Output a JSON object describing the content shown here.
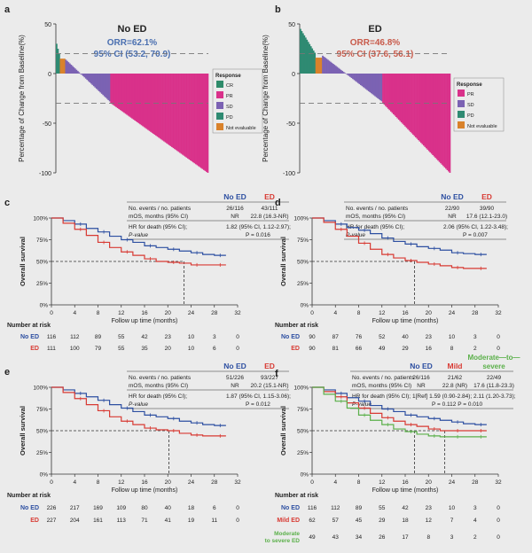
{
  "colors": {
    "no_ed": "#2d4fa1",
    "ed": "#d83a33",
    "mild": "#d83a33",
    "moderate": "#5bb04a",
    "cr": "#2e8b6a",
    "pr": "#d9318a",
    "sd": "#7b62b3",
    "pd": "#2f8a72",
    "ne": "#d9822b",
    "panel_title_a": "#4a6fb0",
    "panel_title_b": "#c85a4a"
  },
  "waterfall": [
    {
      "id": "a",
      "title": "No ED",
      "orr": "ORR=62.1%",
      "ci": "95% CI (53.2, 70.9)",
      "ylabel": "Percentage of Change from Baseline(%)",
      "yticks": [
        "50",
        "0",
        "-50",
        "-100"
      ],
      "legend_title": "Response",
      "legend": [
        {
          "label": "CR",
          "key": "cr"
        },
        {
          "label": "PR",
          "key": "pr"
        },
        {
          "label": "SD",
          "key": "sd"
        },
        {
          "label": "PD",
          "key": "pd"
        },
        {
          "label": "Not evaluable",
          "key": "ne"
        }
      ],
      "ref_lines": [
        20,
        -30
      ],
      "groups": [
        {
          "key": "pd",
          "n": 3,
          "from": 30,
          "to": 20
        },
        {
          "key": "ne",
          "n": 4,
          "from": 15,
          "to": 15
        },
        {
          "key": "sd",
          "n": 34,
          "from": 14,
          "to": -28
        },
        {
          "key": "pr",
          "n": 74,
          "from": -30,
          "to": -100
        }
      ]
    },
    {
      "id": "b",
      "title": "ED",
      "orr": "ORR=46.8%",
      "ci": "95% CI (37.6, 56.1)",
      "ylabel": "Percentage of Change from Baseline(%)",
      "yticks": [
        "50",
        "0",
        "-50",
        "-100"
      ],
      "legend_title": "Response",
      "legend": [
        {
          "label": "PR",
          "key": "pr"
        },
        {
          "label": "SD",
          "key": "sd"
        },
        {
          "label": "PD",
          "key": "pd"
        },
        {
          "label": "Not evaluable",
          "key": "ne"
        }
      ],
      "ref_lines": [
        20,
        -30
      ],
      "groups": [
        {
          "key": "pd",
          "n": 12,
          "from": 45,
          "to": 21
        },
        {
          "key": "ne",
          "n": 5,
          "from": 16,
          "to": 16
        },
        {
          "key": "sd",
          "n": 46,
          "from": 18,
          "to": -28
        },
        {
          "key": "pr",
          "n": 52,
          "from": -30,
          "to": -100
        }
      ]
    }
  ],
  "km_common": {
    "ylabel": "Overall survival",
    "xlabel": "Follow up time (months)",
    "xticks": [
      "0",
      "4",
      "8",
      "12",
      "16",
      "20",
      "24",
      "28",
      "32"
    ],
    "yticks": [
      "100%",
      "75%",
      "50%",
      "25%",
      "0%"
    ],
    "risk_title": "Number at risk",
    "stats_rows": [
      "No. events / no. patients",
      "mOS, months (95% CI)",
      "HR for death (95% CI);",
      "P-value"
    ]
  },
  "km": [
    {
      "id": "c",
      "groups": [
        "No ED",
        "ED"
      ],
      "events": [
        "26/116",
        "43/111"
      ],
      "mos": [
        "NR",
        "22.8 (16.3-NR)"
      ],
      "hr": "1.82 (95% CI, 1.12-2.97);",
      "p": "P = 0.016",
      "median_x": [
        22.8
      ],
      "risk": [
        {
          "label": "No ED",
          "values": [
            "116",
            "112",
            "89",
            "55",
            "42",
            "23",
            "10",
            "3",
            "0"
          ]
        },
        {
          "label": "ED",
          "values": [
            "111",
            "100",
            "79",
            "55",
            "35",
            "20",
            "10",
            "6",
            "0"
          ]
        }
      ],
      "series": [
        {
          "name": "No ED",
          "x": [
            0,
            2,
            4,
            6,
            8,
            10,
            12,
            14,
            16,
            18,
            20,
            22,
            24,
            26,
            28,
            30
          ],
          "y": [
            1,
            0.97,
            0.93,
            0.88,
            0.84,
            0.79,
            0.75,
            0.72,
            0.68,
            0.66,
            0.64,
            0.62,
            0.6,
            0.58,
            0.57,
            0.57
          ]
        },
        {
          "name": "ED",
          "x": [
            0,
            2,
            4,
            6,
            8,
            10,
            12,
            14,
            16,
            18,
            20,
            22,
            24,
            26,
            28,
            30
          ],
          "y": [
            1,
            0.94,
            0.87,
            0.8,
            0.72,
            0.66,
            0.61,
            0.57,
            0.53,
            0.5,
            0.49,
            0.48,
            0.46,
            0.46,
            0.46,
            0.46
          ]
        }
      ]
    },
    {
      "id": "d",
      "groups": [
        "No ED",
        "ED"
      ],
      "events": [
        "22/90",
        "39/90"
      ],
      "mos": [
        "NR",
        "17.6 (12.1-23.0)"
      ],
      "hr": "2.06 (95% CI, 1.22-3.48);",
      "p": "P = 0.007",
      "median_x": [
        17.6
      ],
      "risk": [
        {
          "label": "No ED",
          "values": [
            "90",
            "87",
            "76",
            "52",
            "40",
            "23",
            "10",
            "3",
            "0"
          ]
        },
        {
          "label": "ED",
          "values": [
            "90",
            "81",
            "66",
            "49",
            "29",
            "16",
            "8",
            "2",
            "0"
          ]
        }
      ],
      "series": [
        {
          "name": "No ED",
          "x": [
            0,
            2,
            4,
            6,
            8,
            10,
            12,
            14,
            16,
            18,
            20,
            22,
            24,
            26,
            28,
            30
          ],
          "y": [
            1,
            0.97,
            0.93,
            0.89,
            0.86,
            0.82,
            0.77,
            0.73,
            0.7,
            0.67,
            0.65,
            0.63,
            0.6,
            0.59,
            0.58,
            0.58
          ]
        },
        {
          "name": "ED",
          "x": [
            0,
            2,
            4,
            6,
            8,
            10,
            12,
            14,
            16,
            18,
            20,
            22,
            24,
            26,
            28,
            30
          ],
          "y": [
            1,
            0.95,
            0.87,
            0.79,
            0.71,
            0.64,
            0.58,
            0.54,
            0.51,
            0.49,
            0.47,
            0.45,
            0.43,
            0.42,
            0.42,
            0.42
          ]
        }
      ]
    },
    {
      "id": "e",
      "groups": [
        "No ED",
        "ED"
      ],
      "events": [
        "51/226",
        "93/227"
      ],
      "mos": [
        "NR",
        "20.2 (15.1-NR)"
      ],
      "hr": "1.87 (95% CI, 1.15-3.06);",
      "p": "P = 0.012",
      "median_x": [
        20.2
      ],
      "risk": [
        {
          "label": "No ED",
          "values": [
            "226",
            "217",
            "169",
            "109",
            "80",
            "40",
            "18",
            "6",
            "0"
          ]
        },
        {
          "label": "ED",
          "values": [
            "227",
            "204",
            "161",
            "113",
            "71",
            "41",
            "19",
            "11",
            "0"
          ]
        }
      ],
      "series": [
        {
          "name": "No ED",
          "x": [
            0,
            2,
            4,
            6,
            8,
            10,
            12,
            14,
            16,
            18,
            20,
            22,
            24,
            26,
            28,
            30
          ],
          "y": [
            1,
            0.97,
            0.93,
            0.89,
            0.85,
            0.8,
            0.76,
            0.72,
            0.68,
            0.66,
            0.64,
            0.61,
            0.59,
            0.57,
            0.56,
            0.56
          ]
        },
        {
          "name": "ED",
          "x": [
            0,
            2,
            4,
            6,
            8,
            10,
            12,
            14,
            16,
            18,
            20,
            22,
            24,
            26,
            28,
            30
          ],
          "y": [
            1,
            0.94,
            0.87,
            0.8,
            0.73,
            0.66,
            0.61,
            0.57,
            0.53,
            0.51,
            0.5,
            0.47,
            0.45,
            0.44,
            0.44,
            0.44
          ]
        }
      ]
    },
    {
      "id": "f",
      "groups": [
        "No ED",
        "Mild",
        "Moderate—to—severe"
      ],
      "events": [
        "26/116",
        "21/62",
        "22/49"
      ],
      "mos": [
        "NR",
        "22.8 (NR)",
        "17.6 (11.8-23.3)"
      ],
      "hr": "1[Ref] 1.59 (0.90-2.84); 2.11 (1.20-3.73);",
      "p": "P = 0.112    P = 0.010",
      "median_x": [
        22.8,
        17.6
      ],
      "risk": [
        {
          "label": "No ED",
          "values": [
            "116",
            "112",
            "89",
            "55",
            "42",
            "23",
            "10",
            "3",
            "0"
          ]
        },
        {
          "label": "Mild ED",
          "values": [
            "62",
            "57",
            "45",
            "29",
            "18",
            "12",
            "7",
            "4",
            "0"
          ]
        },
        {
          "label": "Moderate to severe ED",
          "values": [
            "49",
            "43",
            "34",
            "26",
            "17",
            "8",
            "3",
            "2",
            "0"
          ]
        }
      ],
      "series": [
        {
          "name": "No ED",
          "x": [
            0,
            2,
            4,
            6,
            8,
            10,
            12,
            14,
            16,
            18,
            20,
            22,
            24,
            26,
            28,
            30
          ],
          "y": [
            1,
            0.97,
            0.93,
            0.88,
            0.84,
            0.79,
            0.75,
            0.72,
            0.68,
            0.66,
            0.64,
            0.62,
            0.6,
            0.58,
            0.57,
            0.57
          ]
        },
        {
          "name": "Mild",
          "x": [
            0,
            2,
            4,
            6,
            8,
            10,
            12,
            14,
            16,
            18,
            20,
            22,
            24,
            26,
            28,
            30
          ],
          "y": [
            1,
            0.95,
            0.89,
            0.82,
            0.76,
            0.7,
            0.65,
            0.61,
            0.57,
            0.55,
            0.52,
            0.5,
            0.5,
            0.5,
            0.5,
            0.5
          ]
        },
        {
          "name": "Moderate",
          "x": [
            0,
            2,
            4,
            6,
            8,
            10,
            12,
            14,
            16,
            18,
            20,
            22,
            24,
            26,
            28,
            30
          ],
          "y": [
            1,
            0.92,
            0.84,
            0.76,
            0.68,
            0.62,
            0.57,
            0.52,
            0.49,
            0.46,
            0.44,
            0.43,
            0.43,
            0.43,
            0.43,
            0.43
          ]
        }
      ]
    }
  ],
  "chart_data": [
    {
      "type": "bar",
      "title": "No ED",
      "subtitle": "ORR=62.1% 95% CI (53.2, 70.9)",
      "ylabel": "Percentage of Change from Baseline(%)",
      "ylim": [
        -100,
        50
      ],
      "legend": [
        "CR",
        "PR",
        "SD",
        "PD",
        "Not evaluable"
      ]
    },
    {
      "type": "bar",
      "title": "ED",
      "subtitle": "ORR=46.8% 95% CI (37.6, 56.1)",
      "ylabel": "Percentage of Change from Baseline(%)",
      "ylim": [
        -100,
        50
      ],
      "legend": [
        "PR",
        "SD",
        "PD",
        "Not evaluable"
      ]
    },
    {
      "type": "line",
      "xlabel": "Follow up time (months)",
      "ylabel": "Overall survival",
      "series": [
        {
          "name": "No ED",
          "mos": "NR"
        },
        {
          "name": "ED",
          "mos": "22.8"
        }
      ]
    },
    {
      "type": "line",
      "xlabel": "Follow up time (months)",
      "ylabel": "Overall survival",
      "series": [
        {
          "name": "No ED",
          "mos": "NR"
        },
        {
          "name": "ED",
          "mos": "17.6"
        }
      ]
    },
    {
      "type": "line",
      "xlabel": "Follow up time (months)",
      "ylabel": "Overall survival",
      "series": [
        {
          "name": "No ED",
          "mos": "NR"
        },
        {
          "name": "ED",
          "mos": "20.2"
        }
      ]
    },
    {
      "type": "line",
      "xlabel": "Follow up time (months)",
      "ylabel": "Overall survival",
      "series": [
        {
          "name": "No ED",
          "mos": "NR"
        },
        {
          "name": "Mild",
          "mos": "22.8"
        },
        {
          "name": "Moderate—to—severe",
          "mos": "17.6"
        }
      ]
    }
  ]
}
